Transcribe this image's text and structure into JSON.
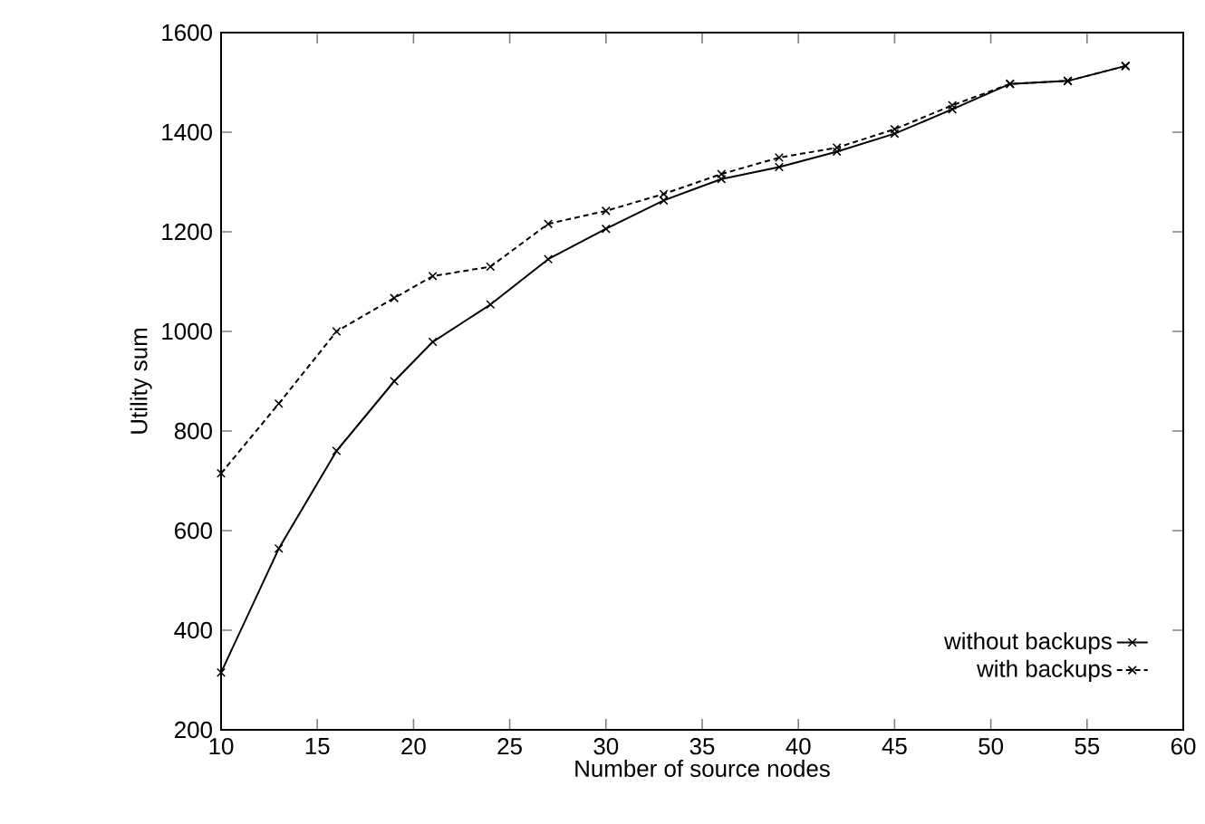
{
  "chart_data": {
    "type": "line",
    "xlabel": "Number of source nodes",
    "ylabel": "Utility sum",
    "x": [
      10,
      13,
      16,
      19,
      21,
      24,
      27,
      30,
      33,
      36,
      39,
      42,
      45,
      48,
      51,
      54,
      57
    ],
    "series": [
      {
        "name": "without backups",
        "color": "#000000",
        "line_style": "solid",
        "values": [
          315,
          564,
          760,
          900,
          979,
          1054,
          1145,
          1206,
          1263,
          1306,
          1330,
          1361,
          1397,
          1446,
          1497,
          1503,
          1533
        ]
      },
      {
        "name": "with backups",
        "color": "#000000",
        "line_style": "dashed",
        "values": [
          715,
          855,
          1000,
          1067,
          1111,
          1130,
          1216,
          1242,
          1276,
          1316,
          1349,
          1369,
          1406,
          1454,
          1497,
          1503,
          1533
        ]
      }
    ],
    "xlim": [
      10,
      60
    ],
    "xticks": [
      10,
      15,
      20,
      25,
      30,
      35,
      40,
      45,
      50,
      55,
      60
    ],
    "ylim": [
      200,
      1600
    ],
    "yticks": [
      200,
      400,
      600,
      800,
      1000,
      1200,
      1400,
      1600
    ],
    "grid": false,
    "legend": "bottom right",
    "marker": "cross"
  }
}
